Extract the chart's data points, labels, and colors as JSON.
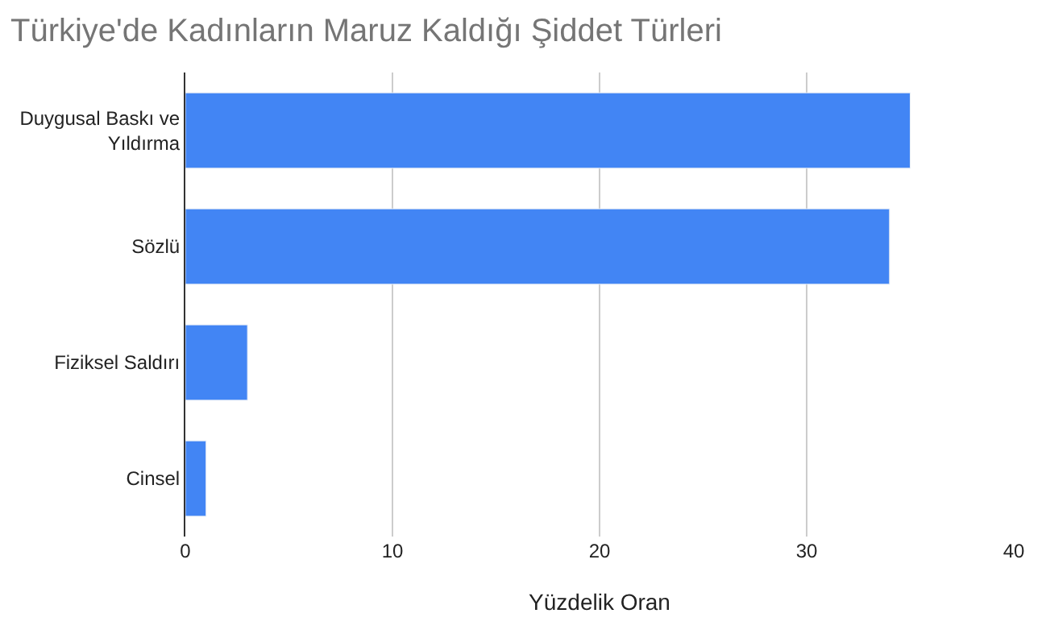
{
  "chart_data": {
    "type": "bar",
    "orientation": "horizontal",
    "title": "Türkiye'de Kadınların Maruz Kaldığı Şiddet Türleri",
    "categories": [
      "Duygusal Baskı ve Yıldırma",
      "Sözlü",
      "Fiziksel Saldırı",
      "Cinsel"
    ],
    "values": [
      35,
      34,
      3,
      1
    ],
    "color": "#4285f4",
    "xlabel": "Yüzdelik Oran",
    "xlim": [
      0,
      40
    ],
    "xticks": [
      0,
      10,
      20,
      30,
      40
    ],
    "grid": "x"
  }
}
